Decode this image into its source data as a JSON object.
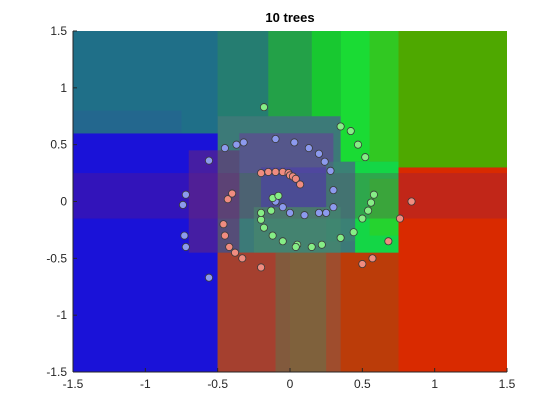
{
  "chart_data": {
    "type": "scatter",
    "title": "10 trees",
    "xlabel": "",
    "ylabel": "",
    "xlim": [
      -1.5,
      1.5
    ],
    "ylim": [
      -1.5,
      1.5
    ],
    "x_ticks": [
      -1.5,
      -1,
      -0.5,
      0,
      0.5,
      1,
      1.5
    ],
    "y_ticks": [
      -1.5,
      -1,
      -0.5,
      0,
      0.5,
      1,
      1.5
    ],
    "x_tick_labels": [
      "-1.5",
      "-1",
      "-0.5",
      "0",
      "0.5",
      "1",
      "1.5"
    ],
    "y_tick_labels": [
      "-1.5",
      "-1",
      "-0.5",
      "0",
      "0.5",
      "1",
      "1.5"
    ],
    "grid": false,
    "legend": "none",
    "background": "decision regions of a 10-tree random forest classifier (three classes)",
    "class_colors": {
      "class_1": "#f08c80",
      "class_2": "#8c9aee",
      "class_3": "#86ee86"
    },
    "region_colors": {
      "class_1": "#dd2a00",
      "class_2": "#1c10dc",
      "class_3": "#00e030"
    },
    "series": [
      {
        "color_key": "class_1",
        "points": [
          [
            0.84,
            0.0
          ],
          [
            0.57,
            -0.5
          ],
          [
            0.5,
            -0.55
          ],
          [
            0.68,
            -0.35
          ],
          [
            0.76,
            -0.15
          ],
          [
            -0.2,
            -0.58
          ],
          [
            -0.33,
            -0.5
          ],
          [
            -0.38,
            -0.45
          ],
          [
            -0.42,
            -0.4
          ],
          [
            -0.45,
            -0.3
          ],
          [
            -0.46,
            -0.2
          ],
          [
            -0.43,
            0.02
          ],
          [
            -0.4,
            0.07
          ],
          [
            -0.2,
            0.25
          ],
          [
            -0.15,
            0.26
          ],
          [
            -0.1,
            0.26
          ],
          [
            -0.05,
            0.26
          ],
          [
            -0.01,
            0.25
          ],
          [
            0.0,
            0.23
          ],
          [
            0.02,
            0.22
          ],
          [
            0.04,
            0.2
          ],
          [
            0.07,
            0.15
          ]
        ]
      },
      {
        "color_key": "class_2",
        "points": [
          [
            -0.56,
            -0.67
          ],
          [
            -0.72,
            -0.4
          ],
          [
            -0.73,
            -0.3
          ],
          [
            -0.74,
            -0.03
          ],
          [
            -0.72,
            0.06
          ],
          [
            -0.56,
            0.36
          ],
          [
            -0.45,
            0.47
          ],
          [
            -0.37,
            0.5
          ],
          [
            -0.32,
            0.52
          ],
          [
            -0.1,
            0.55
          ],
          [
            0.03,
            0.52
          ],
          [
            0.13,
            0.47
          ],
          [
            0.2,
            0.42
          ],
          [
            0.24,
            0.35
          ],
          [
            0.28,
            0.27
          ],
          [
            0.3,
            0.1
          ],
          [
            0.3,
            -0.05
          ],
          [
            0.25,
            -0.1
          ],
          [
            0.2,
            -0.1
          ],
          [
            0.1,
            -0.12
          ],
          [
            0.0,
            -0.1
          ],
          [
            -0.05,
            -0.05
          ],
          [
            -0.1,
            0.0
          ]
        ]
      },
      {
        "color_key": "class_3",
        "points": [
          [
            -0.18,
            0.83
          ],
          [
            0.35,
            0.66
          ],
          [
            0.42,
            0.62
          ],
          [
            0.47,
            0.5
          ],
          [
            0.52,
            0.39
          ],
          [
            0.58,
            0.06
          ],
          [
            0.56,
            -0.01
          ],
          [
            0.54,
            -0.08
          ],
          [
            0.5,
            -0.15
          ],
          [
            0.44,
            -0.27
          ],
          [
            0.35,
            -0.32
          ],
          [
            0.22,
            -0.38
          ],
          [
            0.15,
            -0.4
          ],
          [
            0.05,
            -0.38
          ],
          [
            -0.05,
            -0.35
          ],
          [
            -0.12,
            -0.3
          ],
          [
            -0.18,
            -0.23
          ],
          [
            -0.2,
            -0.16
          ],
          [
            -0.2,
            -0.1
          ],
          [
            -0.13,
            -0.08
          ],
          [
            -0.12,
            0.03
          ],
          [
            -0.08,
            0.05
          ],
          [
            0.04,
            -0.4
          ]
        ]
      }
    ]
  }
}
